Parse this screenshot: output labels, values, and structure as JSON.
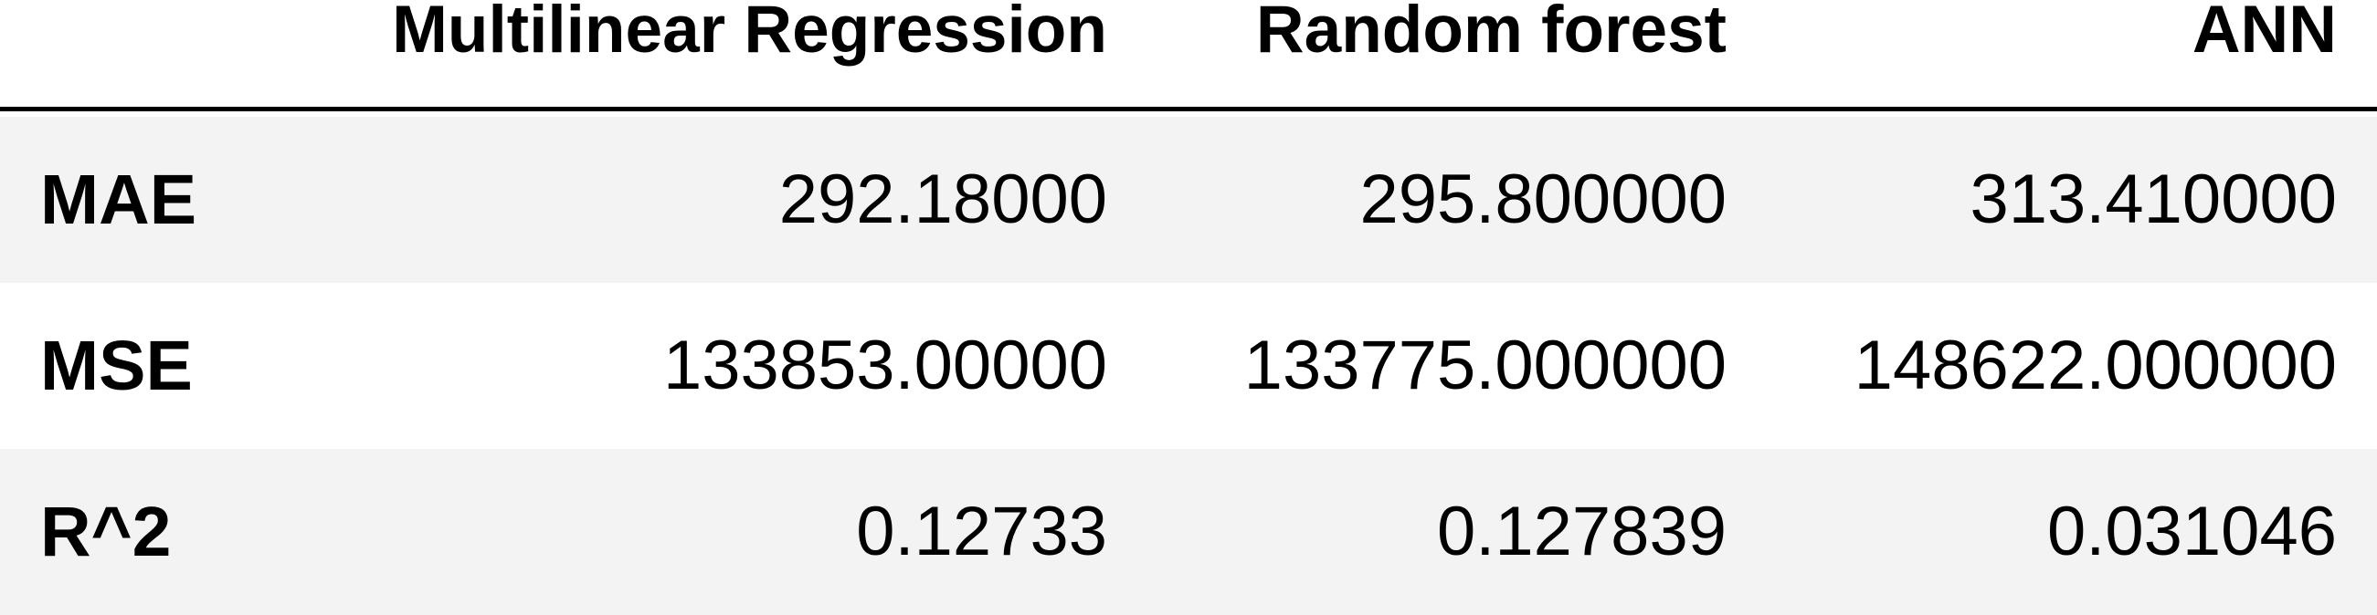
{
  "table": {
    "columns": [
      "Multilinear Regression",
      "Random forest",
      "ANN"
    ],
    "rows": [
      {
        "label": "MAE",
        "values": [
          "292.18000",
          "295.800000",
          "313.410000"
        ]
      },
      {
        "label": "MSE",
        "values": [
          "133853.00000",
          "133775.000000",
          "148622.000000"
        ]
      },
      {
        "label": "R^2",
        "values": [
          "0.12733",
          "0.127839",
          "0.031046"
        ]
      }
    ]
  },
  "colors": {
    "row_shade": "#f3f3f3",
    "header_rule": "#000000"
  }
}
